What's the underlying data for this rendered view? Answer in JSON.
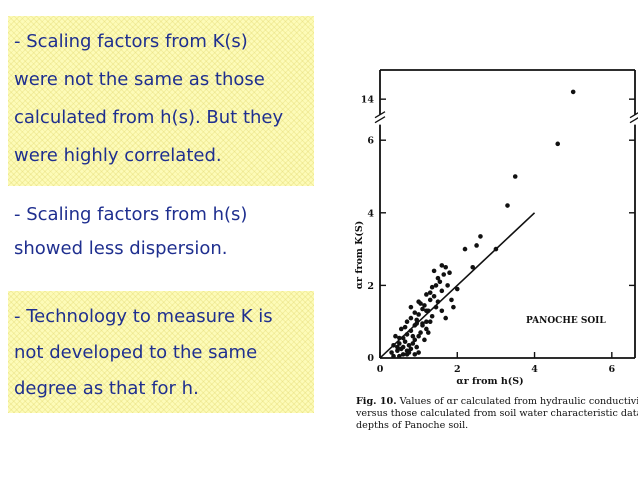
{
  "notes": [
    {
      "text": "- Scaling factors from K(s)\nwere not the same as those\ncalculated from h(s). But they\nwere highly correlated."
    },
    {
      "text": "- Scaling factors from h(s)\nshowed less dispersion."
    },
    {
      "text": "- Technology to measure K is\nnot developed to the same\ndegree as that for h."
    }
  ],
  "colors": {
    "note_text": "#1f2f8f",
    "note_background": "#fdfbb8",
    "ink": "#111111"
  },
  "caption": {
    "fig_label": "Fig. 10.",
    "line1_rest": "Values of αr calculated from hydraulic conductivity",
    "line2": "versus those calculated from soil water characteristic data for",
    "line3": "depths of Panoche soil."
  },
  "chart_data": {
    "type": "scatter",
    "title": "",
    "xlabel": "αr from h(S)",
    "ylabel": "αr from K(S)",
    "xlim": [
      0,
      6.6
    ],
    "ylim": [
      0,
      14.5
    ],
    "y_axis_break": [
      6.4,
      13.6
    ],
    "xticks": [
      "0",
      "2",
      "4",
      "6"
    ],
    "yticks": [
      "2",
      "4",
      "6",
      "14"
    ],
    "annotation": "PANOCHE SOIL",
    "grid": false,
    "reference_line": {
      "x": [
        0,
        4
      ],
      "y": [
        0,
        4
      ]
    },
    "x": [
      0.45,
      0.55,
      0.6,
      0.7,
      0.8,
      0.5,
      0.65,
      0.75,
      0.85,
      0.95,
      0.4,
      0.6,
      0.7,
      0.9,
      1.0,
      0.55,
      0.65,
      0.8,
      0.9,
      1.05,
      0.7,
      0.8,
      0.95,
      1.1,
      1.2,
      0.9,
      1.0,
      1.1,
      1.25,
      1.35,
      1.05,
      1.15,
      1.3,
      1.45,
      1.2,
      1.3,
      1.4,
      1.5,
      1.35,
      1.45,
      1.6,
      1.5,
      1.55,
      1.65,
      1.75,
      1.4,
      1.6,
      1.7,
      1.8,
      0.3,
      0.35,
      0.45,
      0.5,
      0.35,
      0.6,
      0.75,
      1.0,
      1.1,
      1.2,
      1.3,
      1.15,
      1.25,
      0.85,
      0.95,
      1.6,
      1.7,
      1.85,
      2.0,
      1.9,
      2.2,
      2.4,
      2.5,
      2.6,
      3.0,
      3.3,
      3.5,
      4.6,
      0.5,
      0.7,
      0.9,
      1.2,
      1.0,
      0.8
    ],
    "y": [
      0.2,
      0.25,
      0.3,
      0.2,
      0.25,
      0.4,
      0.45,
      0.35,
      0.4,
      0.3,
      0.6,
      0.55,
      0.65,
      0.5,
      0.6,
      0.8,
      0.85,
      0.75,
      0.9,
      0.7,
      1.0,
      1.1,
      1.05,
      0.95,
      1.0,
      1.25,
      1.2,
      1.35,
      1.3,
      1.15,
      1.5,
      1.45,
      1.6,
      1.4,
      1.75,
      1.8,
      1.7,
      1.55,
      1.95,
      2.0,
      1.85,
      2.2,
      2.1,
      2.3,
      2.0,
      2.4,
      2.55,
      2.5,
      2.35,
      0.15,
      0.35,
      0.3,
      0.55,
      0.05,
      0.1,
      0.15,
      0.15,
      0.9,
      0.8,
      1.0,
      0.5,
      0.7,
      0.6,
      0.95,
      1.3,
      1.1,
      1.6,
      1.9,
      1.4,
      3.0,
      2.5,
      3.1,
      3.35,
      3.0,
      4.2,
      5.0,
      5.9,
      0.05,
      0.1,
      0.1,
      1.3,
      1.55,
      1.4
    ],
    "outlier": {
      "x": 5.0,
      "y": 14.2
    }
  }
}
